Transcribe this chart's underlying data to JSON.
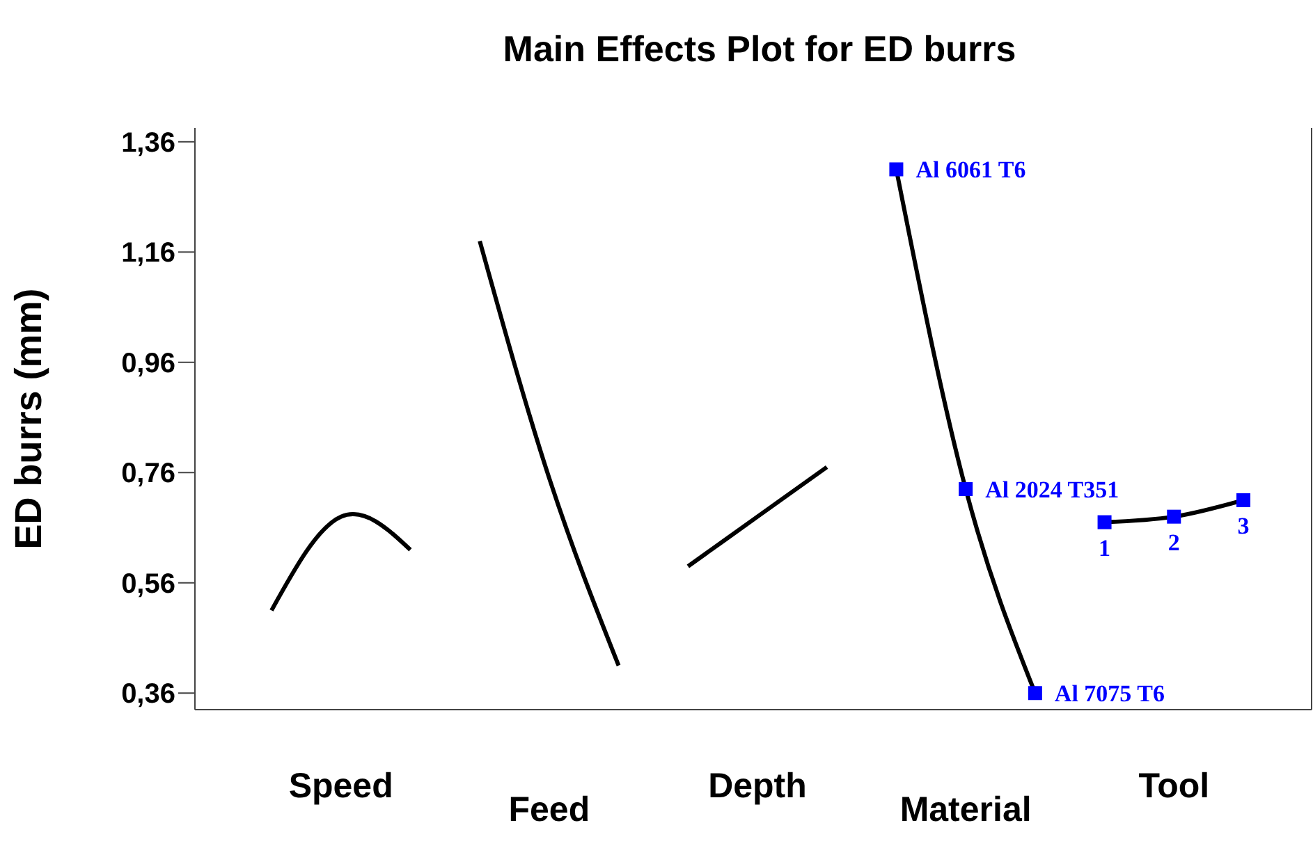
{
  "chart_data": {
    "type": "line",
    "title": "Main Effects Plot for ED burrs",
    "ylabel": "ED burrs (mm)",
    "categories": [
      null,
      "Speed",
      null,
      null,
      "Feed",
      null,
      null,
      "Depth",
      null,
      null,
      "Material",
      null,
      null,
      "Tool",
      null
    ],
    "series": [
      {
        "color": "#000000",
        "marker": "none",
        "values": [
          0.51,
          0.68,
          0.62,
          null,
          null,
          null,
          null,
          null,
          null,
          null,
          null,
          null,
          null,
          null,
          null
        ]
      },
      {
        "color": "#000000",
        "marker": "none",
        "values": [
          null,
          null,
          null,
          1.18,
          0.75,
          0.41,
          null,
          null,
          null,
          null,
          null,
          null,
          null,
          null,
          null
        ]
      },
      {
        "color": "#000000",
        "marker": "none",
        "values": [
          null,
          null,
          null,
          null,
          null,
          null,
          0.59,
          0.68,
          0.77,
          null,
          null,
          null,
          null,
          null,
          null
        ]
      },
      {
        "color": "#000000",
        "marker": "square",
        "colors": [
          null,
          null,
          null,
          null,
          null,
          null,
          null,
          null,
          null,
          "#0000ff",
          "#0000ff",
          "#0000ff",
          null,
          null,
          null
        ],
        "values": [
          null,
          null,
          null,
          null,
          null,
          null,
          null,
          null,
          null,
          1.31,
          0.73,
          0.36,
          null,
          null,
          null
        ]
      },
      {
        "color": "#000000",
        "marker": "square",
        "colors": [
          null,
          null,
          null,
          null,
          null,
          null,
          null,
          null,
          null,
          null,
          null,
          null,
          "#0000ff",
          "#0000ff",
          "#0000ff"
        ],
        "values": [
          null,
          null,
          null,
          null,
          null,
          null,
          null,
          null,
          null,
          null,
          null,
          null,
          0.67,
          0.68,
          0.71
        ]
      }
    ],
    "ylim": [
      0.33,
      1.385
    ],
    "yticks": [
      {
        "value": 0.36,
        "label": "0,36"
      },
      {
        "value": 0.56,
        "label": "0,56"
      },
      {
        "value": 0.76,
        "label": "0,76"
      },
      {
        "value": 0.96,
        "label": "0,96"
      },
      {
        "value": 1.16,
        "label": "1,16"
      },
      {
        "value": 1.36,
        "label": "1,36"
      }
    ],
    "annotations": [
      "Al 6061 T6",
      "Al 2024 T351",
      "Al 7075 T6",
      "1",
      "2",
      "3"
    ],
    "grid": false,
    "legend": false,
    "line_style": "solid"
  }
}
